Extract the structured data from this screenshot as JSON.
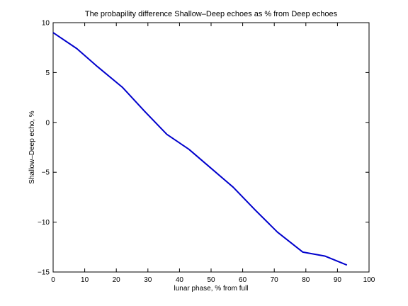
{
  "chart_data": {
    "type": "line",
    "title": "The probapility difference Shallow–Deep echoes as % from Deep echoes",
    "xlabel": "lunar phase, % from full",
    "ylabel": "Shallow–Deep echo, %",
    "xlim": [
      0,
      100
    ],
    "ylim": [
      -15,
      10
    ],
    "xticks": [
      0,
      10,
      20,
      30,
      40,
      50,
      60,
      70,
      80,
      90,
      100
    ],
    "yticks": [
      -15,
      -10,
      -5,
      0,
      5,
      10
    ],
    "xtick_labels": [
      "0",
      "10",
      "20",
      "30",
      "40",
      "50",
      "60",
      "70",
      "80",
      "90",
      "100"
    ],
    "ytick_labels": [
      "−15",
      "−10",
      "−5",
      "0",
      "5",
      "10"
    ],
    "grid": false,
    "series": [
      {
        "color": "#0000cc",
        "x": [
          0,
          7.5,
          14,
          22,
          29,
          36,
          43,
          50,
          57,
          64,
          71,
          79,
          86,
          93
        ],
        "y": [
          9.0,
          7.4,
          5.6,
          3.5,
          1.1,
          -1.2,
          -2.7,
          -4.6,
          -6.5,
          -8.8,
          -11.0,
          -13.0,
          -13.4,
          -14.3
        ]
      }
    ]
  }
}
